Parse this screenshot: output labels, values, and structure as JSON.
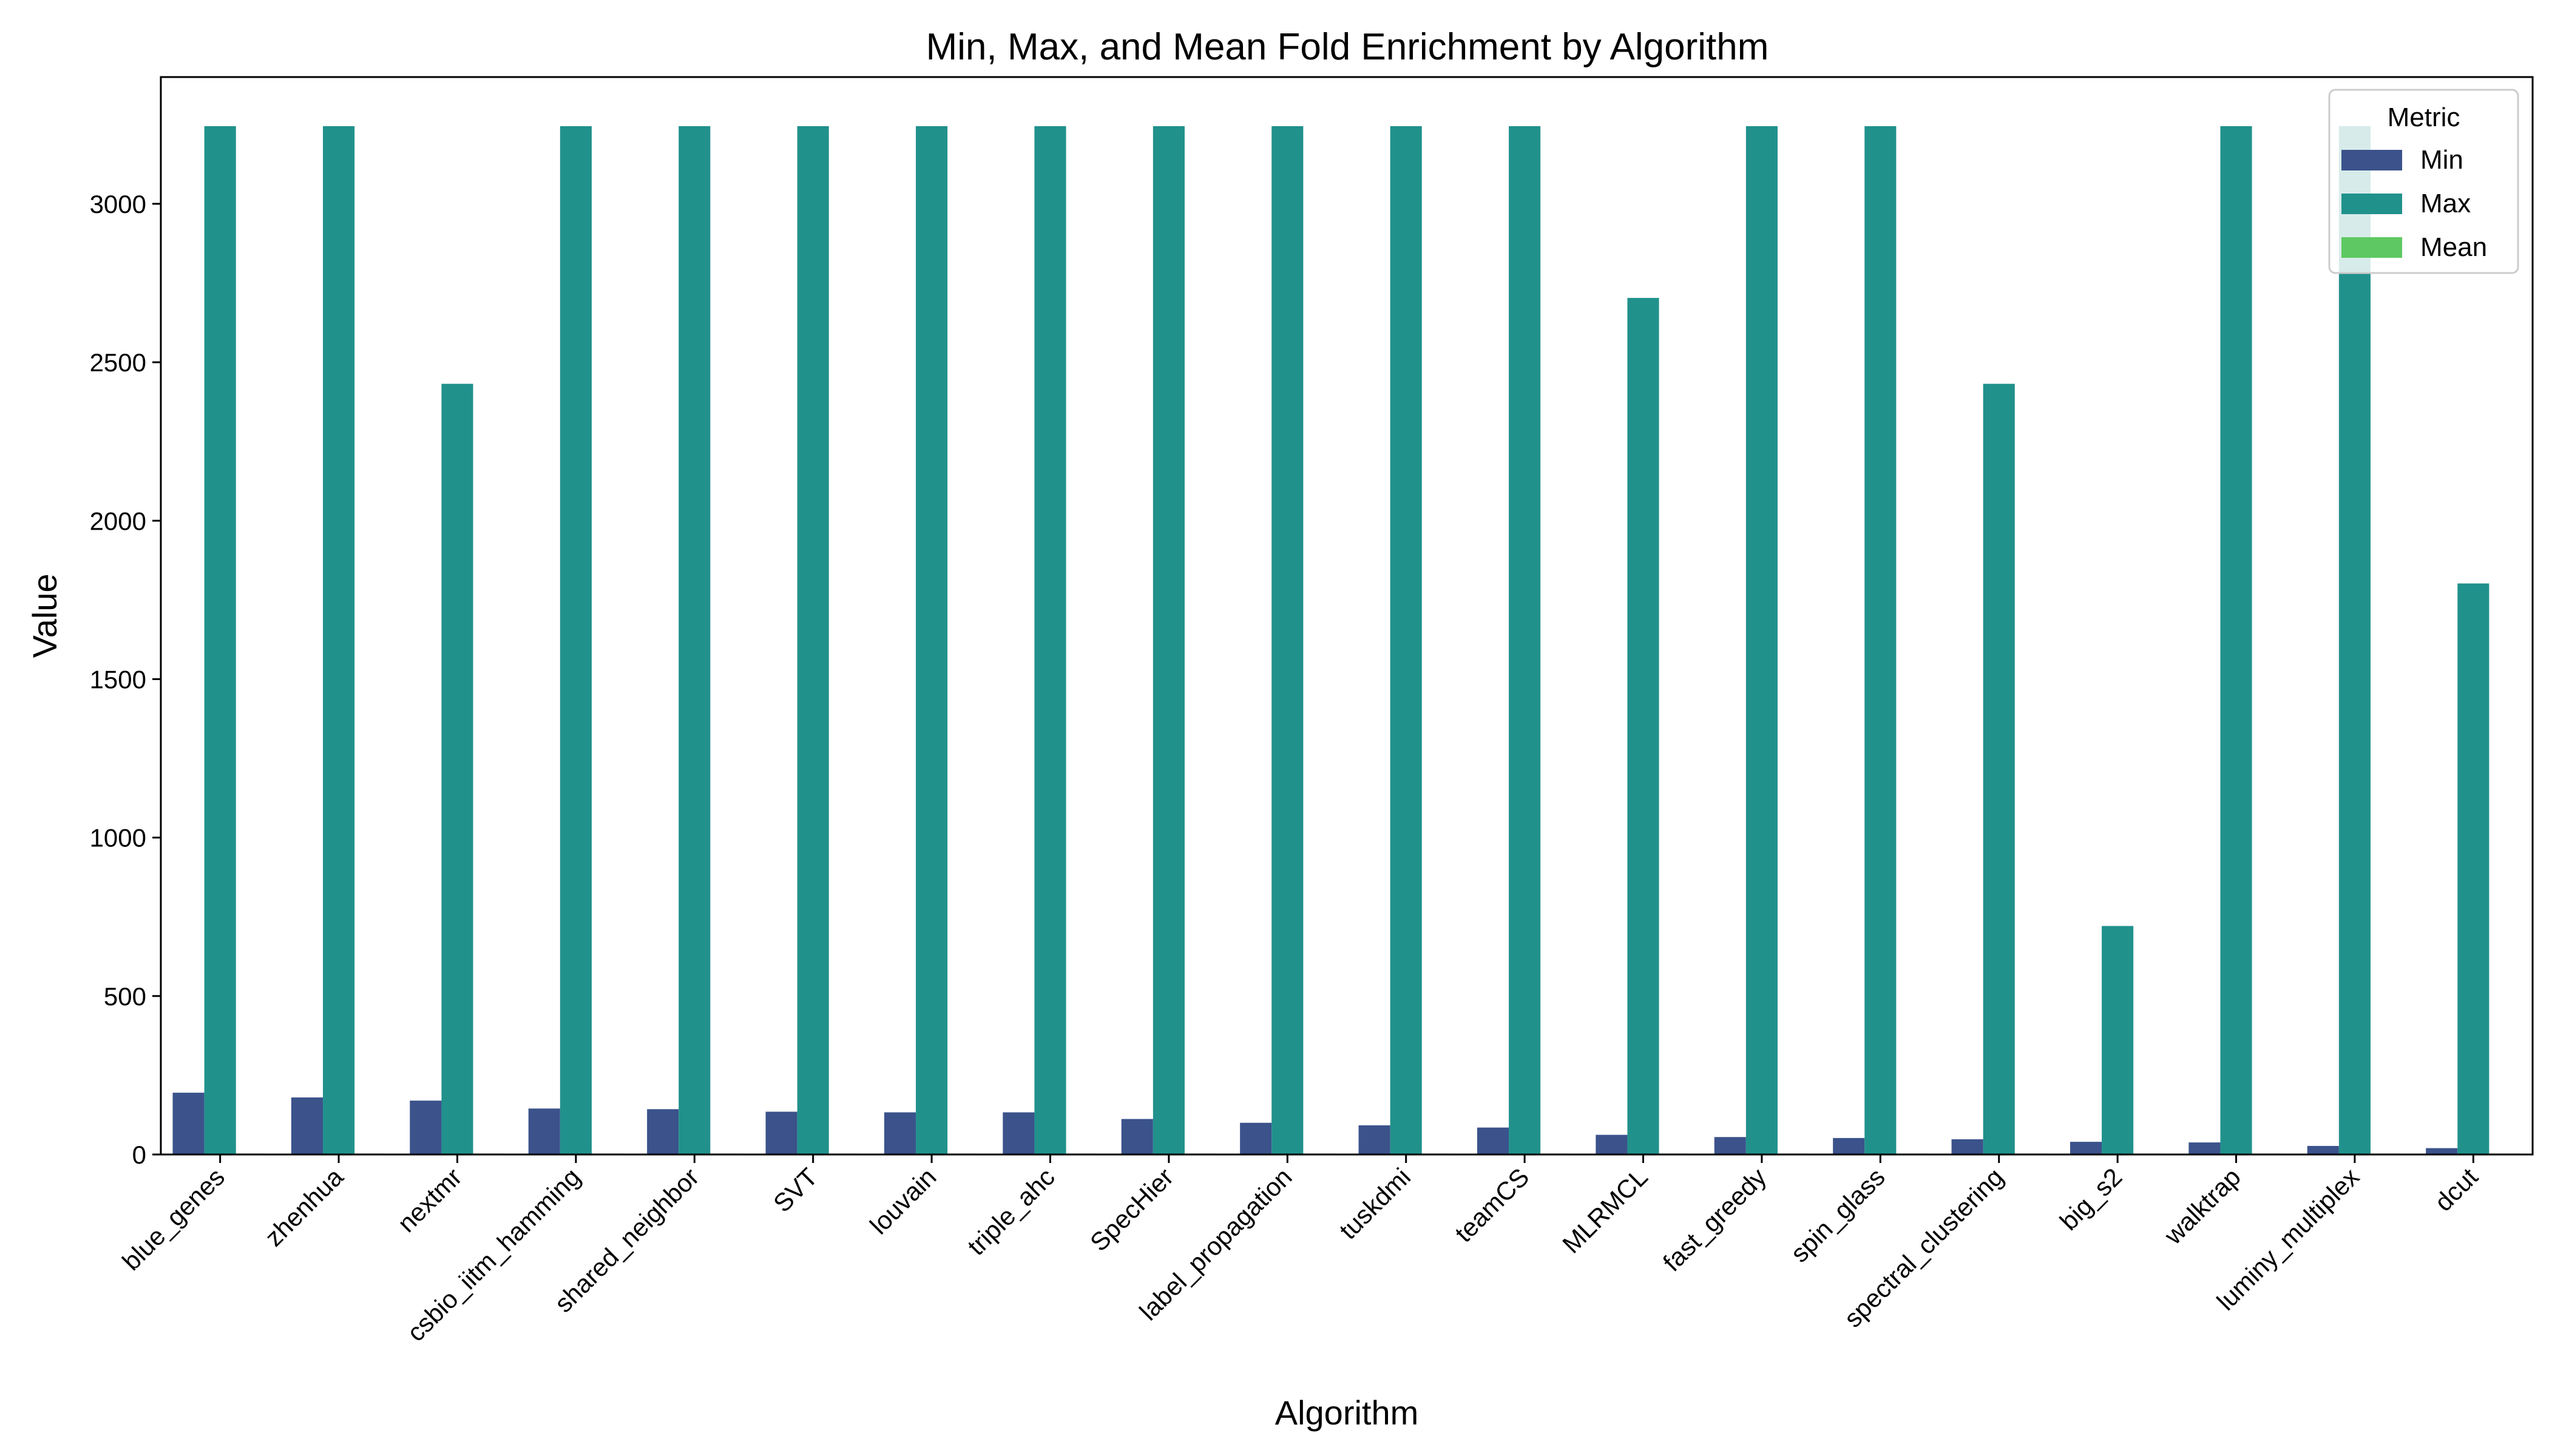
{
  "chart_data": {
    "type": "bar",
    "title": "Min, Max, and Mean Fold Enrichment by Algorithm",
    "xlabel": "Algorithm",
    "ylabel": "Value",
    "ylim": [
      0,
      3400
    ],
    "yticks": [
      0,
      500,
      1000,
      1500,
      2000,
      2500,
      3000
    ],
    "grid": false,
    "legend": {
      "title": "Metric",
      "placement": "top-right"
    },
    "categories": [
      "blue_genes",
      "zhenhua",
      "nextmr",
      "csbio_iitm_hamming",
      "shared_neighbor",
      "SVT",
      "louvain",
      "triple_ahc",
      "SpecHier",
      "label_propagation",
      "tuskdmi",
      "teamCS",
      "MLRMCL",
      "fast_greedy",
      "spin_glass",
      "spectral_clustering",
      "big_s2",
      "walktrap",
      "luminy_multiplex",
      "dcut"
    ],
    "series": [
      {
        "name": "Min",
        "color": "#3b528b",
        "values": [
          195,
          180,
          170,
          145,
          143,
          135,
          133,
          133,
          112,
          100,
          92,
          85,
          62,
          55,
          52,
          48,
          40,
          38,
          27,
          20
        ]
      },
      {
        "name": "Max",
        "color": "#21918c",
        "values": [
          3245,
          3245,
          2432,
          3245,
          3245,
          3245,
          3245,
          3245,
          3245,
          3245,
          3245,
          3245,
          2703,
          3245,
          3245,
          2432,
          721,
          3245,
          3245,
          1802
        ]
      },
      {
        "name": "Mean",
        "color": "#5ec962",
        "values": [
          3,
          3,
          3,
          3,
          3,
          3,
          3,
          3,
          3,
          3,
          3,
          3,
          3,
          3,
          3,
          3,
          3,
          3,
          3,
          3
        ]
      }
    ]
  }
}
